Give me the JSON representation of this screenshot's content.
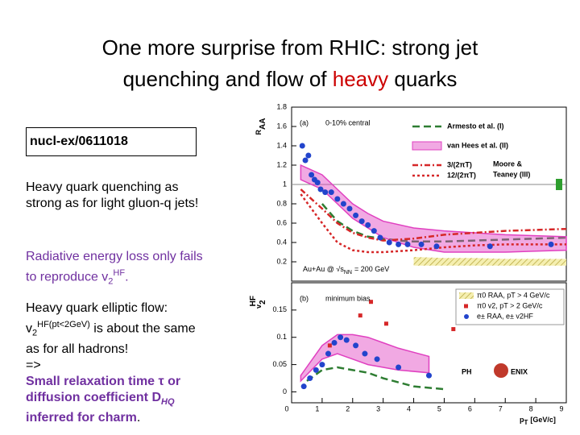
{
  "slide": {
    "title": {
      "line1": "One more surprise from RHIC: strong jet",
      "line2_a": "quenching and flow of",
      "line2_b": "heavy",
      "line2_c": "quarks"
    },
    "reference": "nucl-ex/0611018",
    "p1": "Heavy quark quenching as strong as for light gluon-q jets!",
    "p2": {
      "a": "Radiative energy loss only fails to reproduce v",
      "sub": "2",
      "sup": "HF",
      "end": "."
    },
    "p3": {
      "a": "Heavy quark elliptic flow:",
      "b": "v",
      "sub": "2",
      "sup": "HF(pt<2GeV)",
      "c": "is about the same as for all hadrons!",
      "arrow": "=>"
    },
    "p4": {
      "a": "Small relaxation time τ or diffusion coefficient D",
      "sub": "HQ",
      "b": "inferred for charm",
      "end": "."
    }
  },
  "chart_data": [
    {
      "type": "line",
      "panel_label": "(a)",
      "subtitle": "0-10% central",
      "ylabel": {
        "main": "R",
        "sub": "AA"
      },
      "annotation": {
        "a": "Au+Au @ √s",
        "sub": "NN",
        "b": "= 200 GeV"
      },
      "legend_note": [
        "Moore &",
        "Teaney (III)"
      ],
      "xlim": [
        0,
        9
      ],
      "ylim": [
        0,
        1.8
      ],
      "yticks": [
        0.2,
        0.4,
        0.6,
        0.8,
        1,
        1.2,
        1.4,
        1.6,
        1.8
      ],
      "series": [
        {
          "name": "Armesto et al. (I)",
          "color": "#2e7d32",
          "style": "dashed",
          "x": [
            1,
            1.5,
            2,
            2.5,
            3,
            3.5,
            4,
            5,
            6,
            7,
            8,
            9
          ],
          "values": [
            0.8,
            0.62,
            0.52,
            0.46,
            0.44,
            0.42,
            0.41,
            0.41,
            0.42,
            0.43,
            0.44,
            0.45
          ]
        },
        {
          "name": "van Hees et al. (II)",
          "color": "#e040c0",
          "style": "band",
          "x": [
            0.3,
            1,
            1.5,
            2,
            2.5,
            3,
            4,
            5,
            6,
            7,
            8,
            9
          ],
          "values": [
            1.2,
            1.1,
            0.95,
            0.8,
            0.7,
            0.62,
            0.55,
            0.52,
            0.5,
            0.48,
            0.47,
            0.46
          ],
          "lower": [
            1.05,
            0.95,
            0.8,
            0.65,
            0.55,
            0.45,
            0.35,
            0.3,
            0.3,
            0.3,
            0.31,
            0.32
          ]
        },
        {
          "name": "3/(2πT)",
          "color": "#d62728",
          "style": "dashdot",
          "x": [
            0.3,
            1,
            1.5,
            2,
            2.5,
            3,
            4,
            5,
            6,
            7,
            8,
            9
          ],
          "values": [
            0.95,
            0.75,
            0.6,
            0.5,
            0.45,
            0.42,
            0.44,
            0.48,
            0.5,
            0.52,
            0.53,
            0.54
          ]
        },
        {
          "name": "12/(2πT)",
          "color": "#d62728",
          "style": "dotted",
          "x": [
            0.3,
            1,
            1.5,
            2,
            2.5,
            3,
            4,
            5,
            6,
            7,
            8,
            9
          ],
          "values": [
            0.9,
            0.6,
            0.4,
            0.32,
            0.3,
            0.3,
            0.32,
            0.35,
            0.37,
            0.38,
            0.38,
            0.38
          ]
        },
        {
          "name": "π0 RAA, pT > 4 GeV/c",
          "color": "#e6d96a",
          "style": "hatched",
          "x": [
            4,
            5,
            6,
            7,
            8,
            9
          ],
          "values": [
            0.25,
            0.24,
            0.24,
            0.23,
            0.23,
            0.23
          ],
          "lower": [
            0.16,
            0.16,
            0.16,
            0.16,
            0.16,
            0.16
          ]
        },
        {
          "color": "#2244cc",
          "style": "points",
          "x": [
            0.35,
            0.45,
            0.55,
            0.65,
            0.75,
            0.85,
            0.95,
            1.1,
            1.3,
            1.5,
            1.7,
            1.9,
            2.1,
            2.3,
            2.5,
            2.7,
            2.9,
            3.2,
            3.5,
            3.8,
            4.25,
            4.75,
            6.5,
            8.5
          ],
          "values": [
            1.4,
            1.25,
            1.3,
            1.1,
            1.05,
            1.02,
            0.95,
            0.92,
            0.92,
            0.85,
            0.8,
            0.75,
            0.68,
            0.62,
            0.58,
            0.52,
            0.45,
            0.4,
            0.38,
            0.38,
            0.38,
            0.36,
            0.36,
            0.38
          ]
        }
      ]
    },
    {
      "type": "line",
      "panel_label": "(b)",
      "subtitle": "minimum bias",
      "ylabel": {
        "main": "v",
        "sub": "2",
        "sup": "HF"
      },
      "xlabel": {
        "main": "p",
        "sub": "T",
        "b": "[GeV/c]"
      },
      "logo": [
        "PH",
        "ENIX"
      ],
      "xlim": [
        0,
        9
      ],
      "xticks": [
        0,
        1,
        2,
        3,
        4,
        5,
        6,
        7,
        8,
        9
      ],
      "ylim": [
        -0.02,
        0.2
      ],
      "yticks": [
        0,
        0.05,
        0.1,
        0.15
      ],
      "series": [
        {
          "color": "#e040c0",
          "style": "band",
          "x": [
            0.3,
            1,
            1.5,
            2,
            2.5,
            3,
            3.5,
            4.5
          ],
          "values": [
            0.03,
            0.085,
            0.105,
            0.105,
            0.1,
            0.09,
            0.08,
            0.065
          ],
          "lower": [
            0.02,
            0.06,
            0.07,
            0.06,
            0.05,
            0.045,
            0.04,
            0.035
          ]
        },
        {
          "color": "#2e7d32",
          "style": "dashed",
          "x": [
            0.5,
            1,
            1.5,
            2,
            2.5,
            3,
            4,
            5
          ],
          "values": [
            0.02,
            0.04,
            0.045,
            0.04,
            0.035,
            0.025,
            0.01,
            0.005
          ]
        },
        {
          "name": "π0 v2, pT > 2 GeV/c",
          "color": "#d62728",
          "style": "squares",
          "x": [
            1.25,
            2.25,
            2.6,
            3.1,
            5.3
          ],
          "values": [
            0.085,
            0.14,
            0.165,
            0.125,
            0.115
          ]
        },
        {
          "name": "e± RAA, e± v2HF",
          "color": "#2244cc",
          "style": "points",
          "x": [
            0.4,
            0.6,
            0.8,
            1,
            1.2,
            1.4,
            1.6,
            1.8,
            2.1,
            2.4,
            2.8,
            3.5,
            4.5
          ],
          "values": [
            0.01,
            0.025,
            0.04,
            0.05,
            0.07,
            0.09,
            0.1,
            0.095,
            0.085,
            0.07,
            0.06,
            0.045,
            0.03
          ]
        }
      ]
    }
  ]
}
